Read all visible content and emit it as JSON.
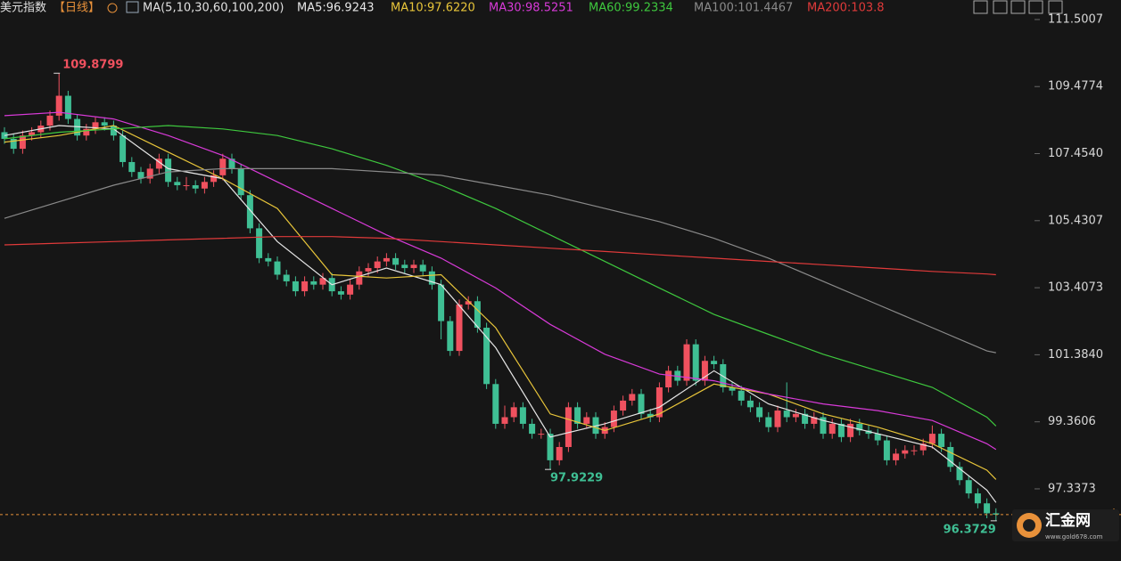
{
  "chart_data": {
    "type": "candlestick",
    "title": "美元指数",
    "period": "【日线】",
    "ma_params": "MA(5,10,30,60,100,200)",
    "up_color": "#f0515f",
    "down_color": "#3fbf94",
    "ylim": [
      95.16,
      112.09
    ],
    "yticks": [
      111.5007,
      109.4774,
      {
        "value": 107.454,
        "label": "107.4540"
      },
      105.4307,
      103.4073,
      {
        "value": 101.384,
        "label": "101.3840"
      },
      99.3606,
      97.3373
    ],
    "last_price": 96.56,
    "last_price_color": "#e8913a",
    "candles": [
      [
        108.1,
        108.25,
        107.75,
        107.9
      ],
      [
        107.9,
        108.05,
        107.45,
        107.6
      ],
      [
        107.6,
        108.15,
        107.45,
        108.0
      ],
      [
        108.0,
        108.25,
        107.85,
        108.1
      ],
      [
        108.1,
        108.45,
        107.95,
        108.3
      ],
      [
        108.3,
        108.75,
        108.15,
        108.6
      ],
      [
        108.6,
        109.8799,
        108.45,
        109.2
      ],
      [
        109.2,
        109.35,
        108.35,
        108.5
      ],
      [
        108.5,
        108.65,
        107.85,
        108.0
      ],
      [
        108.0,
        108.35,
        107.85,
        108.2
      ],
      [
        108.2,
        108.55,
        108.05,
        108.4
      ],
      [
        108.4,
        108.55,
        108.15,
        108.3
      ],
      [
        108.3,
        108.45,
        107.85,
        108.0
      ],
      [
        108.0,
        108.15,
        107.05,
        107.2
      ],
      [
        107.2,
        107.35,
        106.75,
        106.9
      ],
      [
        106.9,
        107.05,
        106.55,
        106.7
      ],
      [
        106.7,
        107.15,
        106.55,
        107.0
      ],
      [
        107.0,
        107.45,
        106.85,
        107.3
      ],
      [
        107.3,
        107.45,
        106.45,
        106.6
      ],
      [
        106.6,
        106.75,
        106.35,
        106.5
      ],
      [
        106.5,
        106.75,
        106.35,
        106.5
      ],
      [
        106.5,
        106.65,
        106.25,
        106.4
      ],
      [
        106.4,
        106.75,
        106.25,
        106.6
      ],
      [
        106.6,
        106.95,
        106.45,
        106.8
      ],
      [
        106.8,
        107.45,
        106.65,
        107.3
      ],
      [
        107.3,
        107.45,
        106.85,
        107.0
      ],
      [
        107.0,
        107.15,
        106.05,
        106.2
      ],
      [
        106.2,
        106.35,
        105.05,
        105.2
      ],
      [
        105.2,
        105.35,
        104.15,
        104.3
      ],
      [
        104.3,
        104.45,
        104.05,
        104.2
      ],
      [
        104.2,
        104.35,
        103.65,
        103.8
      ],
      [
        103.8,
        103.95,
        103.45,
        103.6
      ],
      [
        103.6,
        103.75,
        103.15,
        103.3
      ],
      [
        103.3,
        103.75,
        103.15,
        103.6
      ],
      [
        103.6,
        103.75,
        103.35,
        103.5
      ],
      [
        103.5,
        103.85,
        103.35,
        103.7
      ],
      [
        103.7,
        103.85,
        103.15,
        103.3
      ],
      [
        103.3,
        103.45,
        103.05,
        103.2
      ],
      [
        103.2,
        103.65,
        103.05,
        103.5
      ],
      [
        103.5,
        104.05,
        103.35,
        103.9
      ],
      [
        103.9,
        104.15,
        103.75,
        104.0
      ],
      [
        104.0,
        104.35,
        103.85,
        104.2
      ],
      [
        104.2,
        104.45,
        104.05,
        104.3
      ],
      [
        104.3,
        104.45,
        103.95,
        104.1
      ],
      [
        104.1,
        104.25,
        103.85,
        104.0
      ],
      [
        104.0,
        104.25,
        103.85,
        104.1
      ],
      [
        104.1,
        104.25,
        103.75,
        103.9
      ],
      [
        103.9,
        104.05,
        103.35,
        103.5
      ],
      [
        103.5,
        103.65,
        101.85,
        102.4
      ],
      [
        102.4,
        102.55,
        101.35,
        101.5
      ],
      [
        101.5,
        103.05,
        101.35,
        102.9
      ],
      [
        102.9,
        103.15,
        102.75,
        103.0
      ],
      [
        103.0,
        103.15,
        102.05,
        102.2
      ],
      [
        102.2,
        102.35,
        100.35,
        100.5
      ],
      [
        100.5,
        100.65,
        99.15,
        99.3
      ],
      [
        99.3,
        99.85,
        99.15,
        99.5
      ],
      [
        99.5,
        99.95,
        99.35,
        99.8
      ],
      [
        99.8,
        99.95,
        99.15,
        99.3
      ],
      [
        99.3,
        99.45,
        98.85,
        99.0
      ],
      [
        99.0,
        99.15,
        98.85,
        99.0
      ],
      [
        99.0,
        99.15,
        97.9229,
        98.2
      ],
      [
        98.2,
        98.75,
        98.05,
        98.6
      ],
      [
        98.6,
        99.95,
        98.45,
        99.8
      ],
      [
        99.8,
        99.95,
        99.15,
        99.3
      ],
      [
        99.3,
        99.65,
        99.15,
        99.5
      ],
      [
        99.5,
        99.65,
        98.85,
        99.0
      ],
      [
        99.0,
        99.35,
        98.85,
        99.2
      ],
      [
        99.2,
        99.85,
        99.05,
        99.7
      ],
      [
        99.7,
        100.15,
        99.55,
        100.0
      ],
      [
        100.0,
        100.35,
        99.85,
        100.2
      ],
      [
        100.2,
        100.35,
        99.45,
        99.6
      ],
      [
        99.6,
        99.75,
        99.35,
        99.5
      ],
      [
        99.5,
        100.55,
        99.35,
        100.4
      ],
      [
        100.4,
        101.05,
        100.25,
        100.9
      ],
      [
        100.9,
        101.05,
        100.45,
        100.6
      ],
      [
        100.6,
        101.85,
        100.45,
        101.7
      ],
      [
        101.7,
        101.85,
        100.45,
        100.6
      ],
      [
        100.6,
        101.35,
        100.45,
        101.2
      ],
      [
        101.2,
        101.35,
        100.95,
        101.1
      ],
      [
        101.1,
        101.25,
        100.25,
        100.4
      ],
      [
        100.4,
        100.55,
        100.15,
        100.3
      ],
      [
        100.3,
        100.45,
        99.85,
        100.0
      ],
      [
        100.0,
        100.15,
        99.65,
        99.8
      ],
      [
        99.8,
        99.95,
        99.35,
        99.5
      ],
      [
        99.5,
        99.65,
        99.05,
        99.2
      ],
      [
        99.2,
        99.85,
        99.05,
        99.7
      ],
      [
        99.7,
        100.55,
        99.35,
        99.5
      ],
      [
        99.5,
        99.75,
        99.35,
        99.6
      ],
      [
        99.6,
        99.75,
        99.15,
        99.3
      ],
      [
        99.3,
        99.65,
        99.15,
        99.5
      ],
      [
        99.5,
        99.65,
        98.85,
        99.0
      ],
      [
        99.0,
        99.45,
        98.85,
        99.3
      ],
      [
        99.3,
        99.45,
        98.75,
        98.9
      ],
      [
        98.9,
        99.45,
        98.75,
        99.3
      ],
      [
        99.3,
        99.45,
        98.95,
        99.1
      ],
      [
        99.1,
        99.25,
        98.85,
        99.0
      ],
      [
        99.0,
        99.15,
        98.65,
        98.8
      ],
      [
        98.8,
        98.95,
        98.05,
        98.2
      ],
      [
        98.2,
        98.55,
        98.05,
        98.4
      ],
      [
        98.4,
        98.65,
        98.25,
        98.5
      ],
      [
        98.5,
        98.65,
        98.35,
        98.5
      ],
      [
        98.5,
        98.85,
        98.35,
        98.7
      ],
      [
        98.7,
        99.25,
        98.55,
        99.0
      ],
      [
        99.0,
        99.15,
        98.45,
        98.6
      ],
      [
        98.6,
        98.75,
        97.85,
        98.0
      ],
      [
        98.0,
        98.15,
        97.45,
        97.6
      ],
      [
        97.6,
        97.75,
        97.05,
        97.2
      ],
      [
        97.2,
        97.35,
        96.75,
        96.9
      ],
      [
        96.9,
        97.05,
        96.45,
        96.6
      ],
      [
        96.6,
        96.75,
        96.3729,
        96.56
      ]
    ],
    "series": [
      {
        "label": "MA5:96.9243",
        "color": "#e6e6e6",
        "x": [
          0,
          6,
          12,
          18,
          24,
          30,
          36,
          42,
          48,
          54,
          60,
          66,
          72,
          78,
          84,
          90,
          96,
          102,
          108,
          109
        ],
        "values": [
          108.0,
          108.3,
          108.2,
          107.0,
          106.7,
          104.8,
          103.5,
          104.0,
          103.5,
          101.6,
          98.9,
          99.3,
          99.8,
          100.9,
          99.9,
          99.4,
          99.0,
          98.6,
          97.3,
          96.9243
        ]
      },
      {
        "label": "MA10:97.6220",
        "color": "#e8c53a",
        "x": [
          0,
          6,
          12,
          18,
          24,
          30,
          36,
          42,
          48,
          54,
          60,
          66,
          72,
          78,
          84,
          90,
          96,
          102,
          108,
          109
        ],
        "values": [
          107.8,
          108.0,
          108.3,
          107.5,
          106.7,
          105.8,
          103.8,
          103.7,
          103.8,
          102.2,
          99.6,
          99.1,
          99.6,
          100.5,
          100.2,
          99.6,
          99.2,
          98.7,
          97.9,
          97.622
        ]
      },
      {
        "label": "MA30:98.5251",
        "color": "#d83ad8",
        "x": [
          0,
          6,
          12,
          18,
          24,
          30,
          36,
          42,
          48,
          54,
          60,
          66,
          72,
          78,
          84,
          90,
          96,
          102,
          108,
          109
        ],
        "values": [
          108.6,
          108.7,
          108.5,
          108.0,
          107.4,
          106.6,
          105.8,
          105.0,
          104.3,
          103.4,
          102.3,
          101.4,
          100.8,
          100.6,
          100.2,
          99.9,
          99.7,
          99.4,
          98.7,
          98.5251
        ]
      },
      {
        "label": "MA60:99.2334",
        "color": "#3ec83e",
        "x": [
          0,
          6,
          12,
          18,
          24,
          30,
          36,
          42,
          48,
          54,
          60,
          66,
          72,
          78,
          84,
          90,
          96,
          102,
          108,
          109
        ],
        "values": [
          107.9,
          108.1,
          108.2,
          108.3,
          108.2,
          108.0,
          107.6,
          107.1,
          106.5,
          105.8,
          105.0,
          104.2,
          103.4,
          102.6,
          102.0,
          101.4,
          100.9,
          100.4,
          99.5,
          99.2334
        ]
      },
      {
        "label": "MA100:101.4467",
        "color": "#8a8a8a",
        "x": [
          0,
          6,
          12,
          18,
          24,
          30,
          36,
          42,
          48,
          54,
          60,
          66,
          72,
          78,
          84,
          90,
          96,
          102,
          108,
          109
        ],
        "values": [
          105.5,
          106.0,
          106.5,
          106.9,
          107.0,
          107.0,
          107.0,
          106.9,
          106.8,
          106.5,
          106.2,
          105.8,
          105.4,
          104.9,
          104.3,
          103.6,
          102.9,
          102.2,
          101.5,
          101.4467
        ]
      },
      {
        "label": "MA200:103.8",
        "color": "#e03a3a",
        "x": [
          0,
          6,
          12,
          18,
          24,
          30,
          36,
          42,
          48,
          54,
          60,
          66,
          72,
          78,
          84,
          90,
          96,
          102,
          108,
          109
        ],
        "values": [
          104.7,
          104.75,
          104.8,
          104.85,
          104.9,
          104.95,
          104.95,
          104.9,
          104.8,
          104.7,
          104.6,
          104.5,
          104.4,
          104.3,
          104.2,
          104.1,
          104.0,
          103.9,
          103.82,
          103.8
        ]
      }
    ],
    "annotations": [
      {
        "index": 6,
        "value": 109.8799,
        "color": "#f0515f"
      },
      {
        "index": 60,
        "value": 97.9229,
        "color": "#3fbf94"
      },
      {
        "index": 109,
        "value": 96.3729,
        "color": "#3fbf94"
      }
    ]
  },
  "watermark": {
    "name": "汇金网",
    "url": "www.gold678.com"
  }
}
